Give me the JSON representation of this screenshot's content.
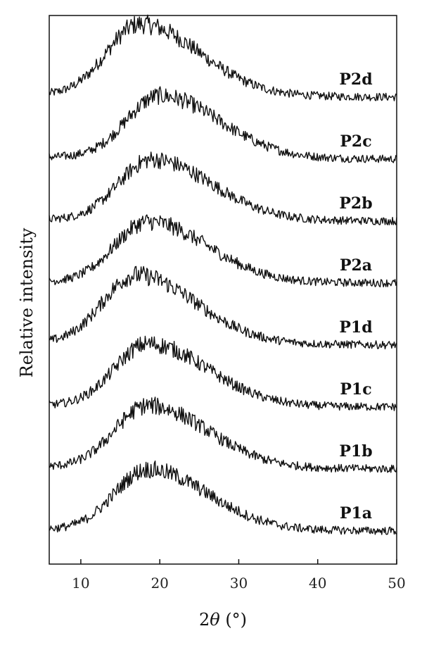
{
  "chart_data": {
    "type": "line",
    "xlabel_prefix": "2",
    "xlabel_symbol": "θ",
    "xlabel_suffix": " (°)",
    "ylabel": "Relative intensity",
    "xlim": [
      6,
      50
    ],
    "xticks": [
      10,
      20,
      30,
      40,
      50
    ],
    "grid": false,
    "line_color": "#111111",
    "series": [
      {
        "name": "P2d",
        "peak_x": 17.5,
        "peak_height": 0.92,
        "baseline_end": 0.06
      },
      {
        "name": "P2c",
        "peak_x": 20.0,
        "peak_height": 0.8,
        "baseline_end": 0.05
      },
      {
        "name": "P2b",
        "peak_x": 19.0,
        "peak_height": 0.78,
        "baseline_end": 0.04
      },
      {
        "name": "P2a",
        "peak_x": 18.5,
        "peak_height": 0.78,
        "baseline_end": 0.03
      },
      {
        "name": "P1d",
        "peak_x": 17.0,
        "peak_height": 0.88,
        "baseline_end": 0.06
      },
      {
        "name": "P1c",
        "peak_x": 18.5,
        "peak_height": 0.8,
        "baseline_end": 0.04
      },
      {
        "name": "P1b",
        "peak_x": 18.5,
        "peak_height": 0.8,
        "baseline_end": 0.05
      },
      {
        "name": "P1a",
        "peak_x": 18.5,
        "peak_height": 0.78,
        "baseline_end": 0.04
      }
    ]
  }
}
